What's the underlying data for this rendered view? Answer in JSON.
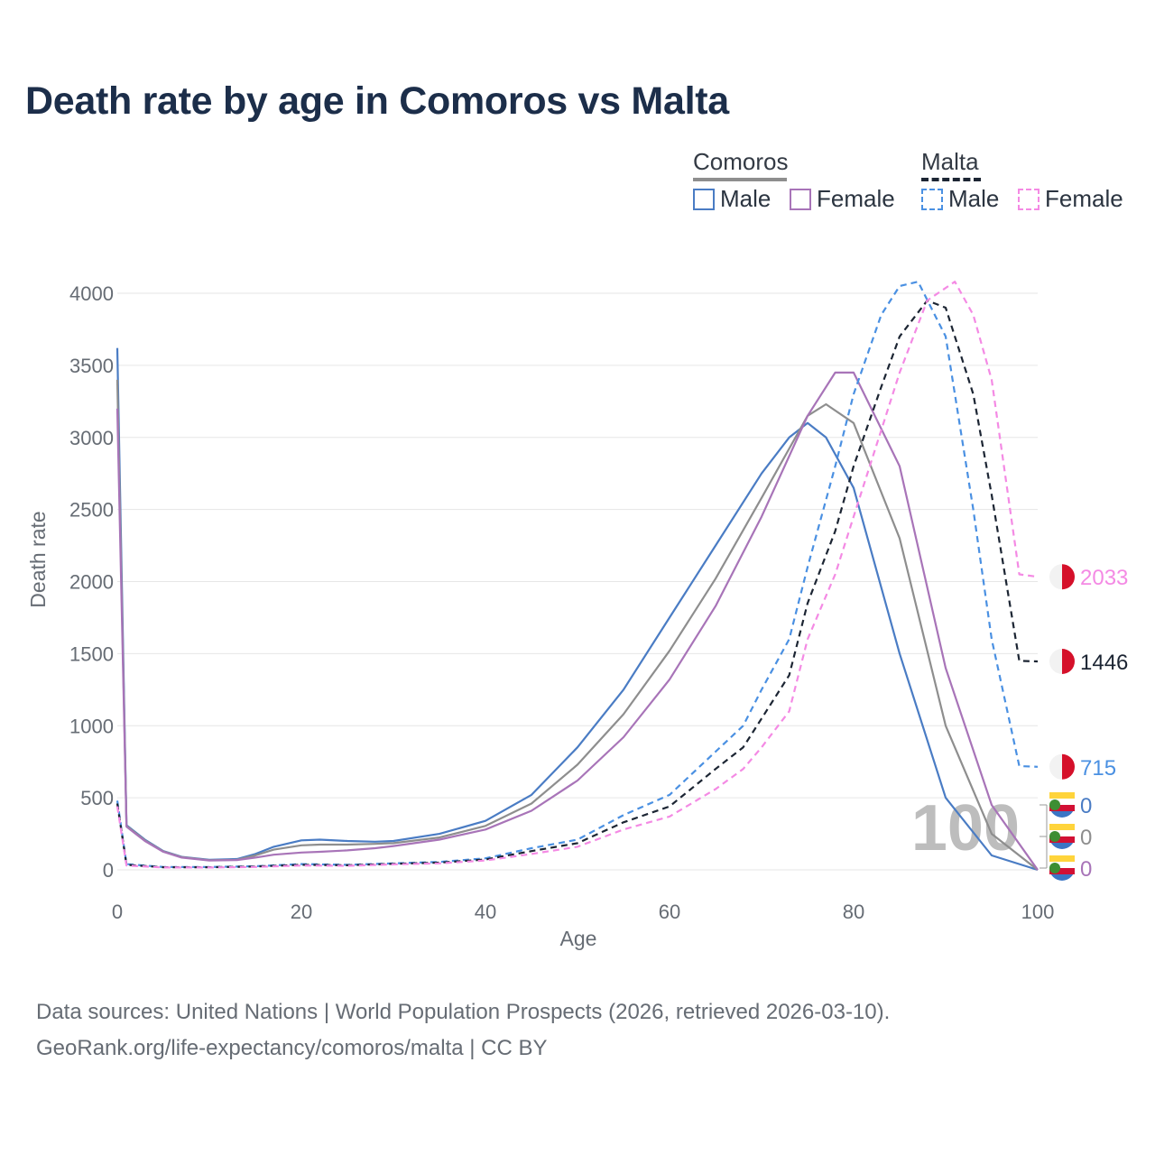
{
  "title": "Death rate by age in Comoros vs Malta",
  "legend": {
    "groups": [
      {
        "name": "Comoros",
        "style": "solid",
        "color": "#8e8e8e",
        "items": [
          {
            "label": "Male",
            "color": "#4a7cc4"
          },
          {
            "label": "Female",
            "color": "#a874b8"
          }
        ]
      },
      {
        "name": "Malta",
        "style": "dashed",
        "color": "#1c2533",
        "items": [
          {
            "label": "Male",
            "color": "#4a90e2"
          },
          {
            "label": "Female",
            "color": "#f48ae4"
          }
        ]
      }
    ]
  },
  "source_line1": "Data sources: United Nations | World Population Prospects (2026, retrieved 2026-03-10).",
  "source_line2": "GeoRank.org/life-expectancy/comoros/malta | CC BY",
  "chart_data": {
    "type": "line",
    "xlabel": "Age",
    "ylabel": "Death rate",
    "xlim": [
      0,
      100
    ],
    "ylim": [
      0,
      4000
    ],
    "xticks": [
      0,
      20,
      40,
      60,
      80,
      100
    ],
    "yticks": [
      0,
      500,
      1000,
      1500,
      2000,
      2500,
      3000,
      3500,
      4000
    ],
    "grid": true,
    "watermark": "100",
    "series": [
      {
        "name": "Comoros Male",
        "country": "Comoros",
        "sex": "Male",
        "color": "#4a7cc4",
        "dash": false,
        "x": [
          0,
          1,
          2,
          3,
          5,
          7,
          10,
          13,
          15,
          17,
          20,
          22,
          25,
          28,
          30,
          35,
          40,
          45,
          50,
          55,
          60,
          65,
          70,
          73,
          75,
          77,
          80,
          85,
          90,
          95,
          100
        ],
        "y": [
          3620,
          310,
          260,
          210,
          130,
          90,
          70,
          75,
          110,
          160,
          205,
          210,
          200,
          195,
          200,
          250,
          340,
          520,
          850,
          1250,
          1750,
          2250,
          2750,
          3000,
          3100,
          3000,
          2650,
          1500,
          500,
          100,
          0
        ],
        "end_label": "0"
      },
      {
        "name": "Comoros Both",
        "country": "Comoros",
        "sex": "Both",
        "color": "#8e8e8e",
        "dash": false,
        "x": [
          0,
          1,
          2,
          3,
          5,
          7,
          10,
          13,
          15,
          17,
          20,
          22,
          25,
          28,
          30,
          35,
          40,
          45,
          50,
          55,
          60,
          65,
          70,
          75,
          77,
          80,
          85,
          90,
          95,
          100
        ],
        "y": [
          3400,
          305,
          255,
          205,
          128,
          88,
          67,
          70,
          100,
          140,
          170,
          175,
          175,
          180,
          185,
          225,
          305,
          460,
          730,
          1080,
          1520,
          2020,
          2580,
          3150,
          3230,
          3100,
          2300,
          1000,
          250,
          0
        ],
        "end_label": "0"
      },
      {
        "name": "Comoros Female",
        "country": "Comoros",
        "sex": "Female",
        "color": "#a874b8",
        "dash": false,
        "x": [
          0,
          1,
          2,
          3,
          5,
          7,
          10,
          13,
          15,
          17,
          20,
          22,
          25,
          28,
          30,
          35,
          40,
          45,
          50,
          55,
          60,
          65,
          70,
          75,
          78,
          80,
          85,
          90,
          95,
          100
        ],
        "y": [
          3200,
          300,
          250,
          200,
          125,
          85,
          65,
          68,
          85,
          105,
          120,
          125,
          135,
          150,
          165,
          210,
          280,
          410,
          620,
          920,
          1320,
          1830,
          2450,
          3150,
          3450,
          3450,
          2800,
          1400,
          450,
          0
        ],
        "end_label": "0"
      },
      {
        "name": "Malta Male",
        "country": "Malta",
        "sex": "Male",
        "color": "#4a90e2",
        "dash": true,
        "x": [
          0,
          1,
          5,
          10,
          15,
          20,
          25,
          30,
          35,
          40,
          45,
          50,
          55,
          60,
          65,
          68,
          70,
          73,
          75,
          78,
          80,
          83,
          85,
          87,
          90,
          93,
          95,
          98,
          100
        ],
        "y": [
          480,
          40,
          20,
          20,
          25,
          40,
          35,
          45,
          55,
          80,
          150,
          210,
          380,
          520,
          820,
          1000,
          1250,
          1600,
          2100,
          2800,
          3300,
          3850,
          4050,
          4080,
          3700,
          2500,
          1600,
          720,
          715
        ],
        "end_label": "715"
      },
      {
        "name": "Malta Both",
        "country": "Malta",
        "sex": "Both",
        "color": "#1c2533",
        "dash": true,
        "x": [
          0,
          1,
          5,
          10,
          15,
          20,
          25,
          30,
          35,
          40,
          45,
          50,
          55,
          60,
          65,
          68,
          70,
          73,
          75,
          78,
          80,
          83,
          85,
          88,
          90,
          93,
          95,
          98,
          100
        ],
        "y": [
          460,
          35,
          18,
          18,
          23,
          35,
          32,
          42,
          50,
          72,
          130,
          185,
          330,
          440,
          700,
          850,
          1050,
          1350,
          1850,
          2350,
          2800,
          3350,
          3700,
          3950,
          3900,
          3300,
          2600,
          1450,
          1446
        ],
        "end_label": "1446"
      },
      {
        "name": "Malta Female",
        "country": "Malta",
        "sex": "Female",
        "color": "#f48ae4",
        "dash": true,
        "x": [
          0,
          1,
          5,
          10,
          15,
          20,
          25,
          30,
          35,
          40,
          45,
          50,
          55,
          60,
          65,
          68,
          70,
          73,
          75,
          78,
          80,
          83,
          85,
          88,
          91,
          93,
          95,
          98,
          100
        ],
        "y": [
          440,
          30,
          16,
          16,
          20,
          30,
          28,
          38,
          45,
          65,
          110,
          160,
          280,
          370,
          560,
          700,
          850,
          1100,
          1600,
          2050,
          2450,
          3050,
          3450,
          3950,
          4080,
          3850,
          3400,
          2050,
          2033
        ],
        "end_label": "2033"
      }
    ]
  }
}
